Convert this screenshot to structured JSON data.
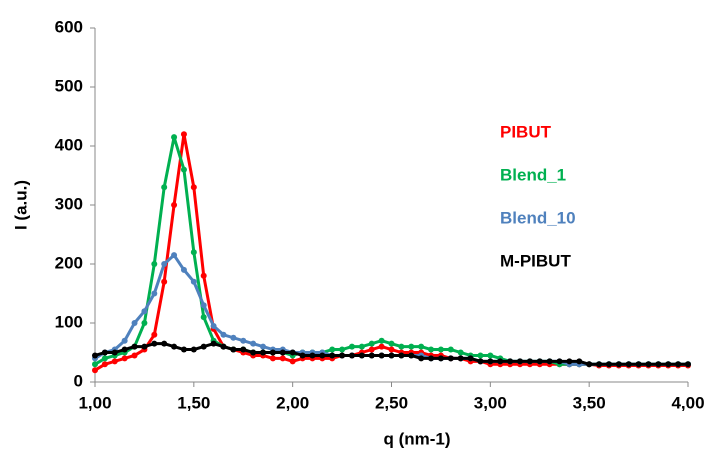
{
  "chart_data": {
    "type": "scatter",
    "x_label": "q (nm-1)",
    "y_label": "I (a.u.)",
    "x": [
      1,
      1.05,
      1.1,
      1.15,
      1.2,
      1.25,
      1.3,
      1.35,
      1.4,
      1.45,
      1.5,
      1.55,
      1.6,
      1.65,
      1.7,
      1.75,
      1.8,
      1.85,
      1.9,
      1.95,
      2,
      2.05,
      2.1,
      2.15,
      2.2,
      2.25,
      2.3,
      2.35,
      2.4,
      2.45,
      2.5,
      2.55,
      2.6,
      2.65,
      2.7,
      2.75,
      2.8,
      2.85,
      2.9,
      2.95,
      3,
      3.05,
      3.1,
      3.15,
      3.2,
      3.25,
      3.3,
      3.35,
      3.4,
      3.45,
      3.5,
      3.55,
      3.6,
      3.65,
      3.7,
      3.75,
      3.8,
      3.85,
      3.9,
      3.95,
      4
    ],
    "series": [
      {
        "name": "PIBUT",
        "color": "#ff0000",
        "values": [
          20,
          30,
          35,
          40,
          45,
          55,
          80,
          170,
          300,
          420,
          330,
          180,
          90,
          60,
          55,
          50,
          45,
          45,
          40,
          40,
          35,
          40,
          40,
          40,
          40,
          45,
          45,
          50,
          55,
          60,
          55,
          50,
          50,
          50,
          45,
          45,
          40,
          40,
          35,
          35,
          30,
          30,
          30,
          30,
          30,
          30,
          30,
          30,
          30,
          30,
          30,
          28,
          28,
          28,
          28,
          28,
          28,
          28,
          28,
          28,
          28
        ]
      },
      {
        "name": "Blend_1",
        "color": "#00b050",
        "values": [
          30,
          40,
          45,
          50,
          60,
          100,
          200,
          330,
          415,
          360,
          220,
          110,
          70,
          60,
          55,
          55,
          50,
          50,
          50,
          50,
          45,
          50,
          50,
          50,
          55,
          55,
          60,
          60,
          65,
          70,
          65,
          60,
          60,
          60,
          55,
          55,
          55,
          50,
          45,
          45,
          45,
          40,
          35,
          35,
          35,
          35,
          35,
          30,
          30,
          30,
          30,
          30,
          30,
          30,
          30,
          30,
          30,
          30,
          30,
          30,
          30
        ]
      },
      {
        "name": "Blend_10",
        "color": "#4f81bd",
        "values": [
          40,
          50,
          55,
          70,
          100,
          120,
          150,
          200,
          215,
          190,
          170,
          130,
          95,
          80,
          75,
          70,
          65,
          60,
          55,
          55,
          50,
          50,
          50,
          50,
          45,
          45,
          45,
          45,
          45,
          45,
          45,
          45,
          45,
          45,
          40,
          40,
          40,
          40,
          40,
          35,
          35,
          35,
          35,
          35,
          35,
          35,
          35,
          35,
          30,
          30,
          30,
          30,
          30,
          30,
          30,
          30,
          30,
          30,
          30,
          30,
          30
        ]
      },
      {
        "name": "M-PIBUT",
        "color": "#000000",
        "values": [
          45,
          50,
          50,
          55,
          60,
          60,
          65,
          65,
          60,
          55,
          55,
          60,
          65,
          60,
          55,
          55,
          50,
          50,
          50,
          50,
          50,
          45,
          45,
          45,
          45,
          45,
          45,
          45,
          45,
          45,
          45,
          45,
          45,
          40,
          40,
          40,
          40,
          40,
          40,
          35,
          35,
          35,
          35,
          35,
          35,
          35,
          35,
          35,
          35,
          35,
          30,
          30,
          30,
          30,
          30,
          30,
          30,
          30,
          30,
          30,
          30
        ]
      }
    ],
    "xlim": [
      1,
      4
    ],
    "xticks": [
      {
        "value": 1,
        "label": "1,00"
      },
      {
        "value": 1.5,
        "label": "1,50"
      },
      {
        "value": 2,
        "label": "2,00"
      },
      {
        "value": 2.5,
        "label": "2,50"
      },
      {
        "value": 3,
        "label": "3,00"
      },
      {
        "value": 3.5,
        "label": "3,50"
      },
      {
        "value": 4,
        "label": "4,00"
      }
    ],
    "ylim": [
      0,
      600
    ],
    "yticks": [
      0,
      100,
      200,
      300,
      400,
      500,
      600
    ],
    "grid": false,
    "legend": "right"
  }
}
